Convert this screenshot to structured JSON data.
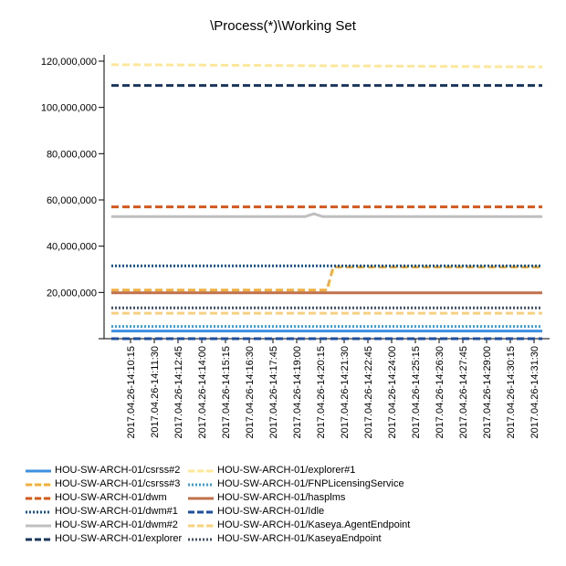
{
  "chart_data": {
    "type": "line",
    "title": "\\Process(*)\\Working Set",
    "xlabel": "",
    "ylabel": "",
    "ylim": [
      0,
      120000000
    ],
    "y_ticks": [
      {
        "value": 0,
        "label": ""
      },
      {
        "value": 20000000,
        "label": "20,000,000"
      },
      {
        "value": 40000000,
        "label": "40,000,000"
      },
      {
        "value": 60000000,
        "label": "60,000,000"
      },
      {
        "value": 80000000,
        "label": "80,000,000"
      },
      {
        "value": 100000000,
        "label": "100,000,000"
      },
      {
        "value": 120000000,
        "label": "120,000,000"
      }
    ],
    "x_labels": [
      "2017.04.26-14:10:15",
      "2017.04.26-14:11:30",
      "2017.04.26-14:12:45",
      "2017.04.26-14:14:00",
      "2017.04.26-14:15:15",
      "2017.04.26-14:16:30",
      "2017.04.26-14:17:45",
      "2017.04.26-14:19:00",
      "2017.04.26-14:20:15",
      "2017.04.26-14:21:30",
      "2017.04.26-14:22:45",
      "2017.04.26-14:24:00",
      "2017.04.26-14:25:15",
      "2017.04.26-14:26:30",
      "2017.04.26-14:27:45",
      "2017.04.26-14:29:00",
      "2017.04.26-14:30:15",
      "2017.04.26-14:31:30"
    ],
    "x_range": [
      0,
      100
    ],
    "grid": false,
    "legend_position": "bottom",
    "series": [
      {
        "name": "HOU-SW-ARCH-01/csrss#2",
        "color": "#3d8fe0",
        "style": "solid",
        "points": [
          [
            0,
            3300000
          ],
          [
            100,
            3300000
          ]
        ]
      },
      {
        "name": "HOU-SW-ARCH-01/csrss#3",
        "color": "#f0b040",
        "style": "dashed",
        "points": [
          [
            0,
            21000000
          ],
          [
            50,
            21000000
          ],
          [
            51.5,
            31000000
          ],
          [
            100,
            31000000
          ]
        ]
      },
      {
        "name": "HOU-SW-ARCH-01/dwm",
        "color": "#d2581e",
        "style": "dashed",
        "points": [
          [
            0,
            57000000
          ],
          [
            100,
            57000000
          ]
        ]
      },
      {
        "name": "HOU-SW-ARCH-01/dwm#1",
        "color": "#17548f",
        "style": "dotted",
        "points": [
          [
            0,
            31500000
          ],
          [
            100,
            31500000
          ]
        ]
      },
      {
        "name": "HOU-SW-ARCH-01/dwm#2",
        "color": "#bfbfbf",
        "style": "solid",
        "points": [
          [
            0,
            52800000
          ],
          [
            45,
            52800000
          ],
          [
            47,
            54000000
          ],
          [
            49,
            52800000
          ],
          [
            100,
            52800000
          ]
        ]
      },
      {
        "name": "HOU-SW-ARCH-01/explorer",
        "color": "#1b365d",
        "style": "dashed",
        "points": [
          [
            0,
            109500000
          ],
          [
            100,
            109500000
          ]
        ]
      },
      {
        "name": "HOU-SW-ARCH-01/explorer#1",
        "color": "#fde79a",
        "style": "dashed",
        "points": [
          [
            0,
            118500000
          ],
          [
            100,
            117500000
          ]
        ]
      },
      {
        "name": "HOU-SW-ARCH-01/FNPLicensingService",
        "color": "#3aa0d8",
        "style": "dotted",
        "points": [
          [
            0,
            5300000
          ],
          [
            100,
            5300000
          ]
        ]
      },
      {
        "name": "HOU-SW-ARCH-01/hasplms",
        "color": "#c0704a",
        "style": "solid",
        "points": [
          [
            0,
            19800000
          ],
          [
            100,
            19800000
          ]
        ]
      },
      {
        "name": "HOU-SW-ARCH-01/Idle",
        "color": "#1f4e9a",
        "style": "dashed",
        "points": [
          [
            0,
            0
          ],
          [
            100,
            0
          ]
        ]
      },
      {
        "name": "HOU-SW-ARCH-01/Kaseya.AgentEndpoint",
        "color": "#f7d080",
        "style": "dashed",
        "points": [
          [
            0,
            11000000
          ],
          [
            100,
            11000000
          ]
        ]
      },
      {
        "name": "HOU-SW-ARCH-01/KaseyaEndpoint",
        "color": "#44546a",
        "style": "dotted",
        "points": [
          [
            0,
            13300000
          ],
          [
            100,
            13300000
          ]
        ]
      }
    ]
  }
}
